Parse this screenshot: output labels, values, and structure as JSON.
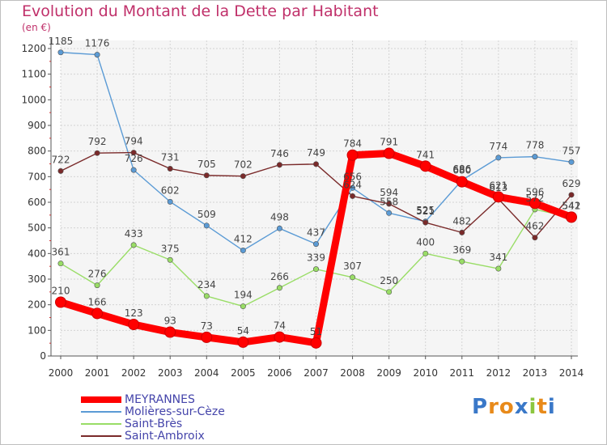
{
  "title": "Evolution du Montant de la Dette par Habitant",
  "unit_label": "(en €)",
  "logo": {
    "text": "Proxiti",
    "letters": [
      "P",
      "r",
      "o",
      "x",
      "i",
      "t",
      "i"
    ],
    "colors": [
      "#3a78c8",
      "#e88a1a",
      "#e88a1a",
      "#3a78c8",
      "#8cc63f",
      "#e88a1a",
      "#3a78c8"
    ]
  },
  "chart_data": {
    "type": "line",
    "title": "Evolution du Montant de la Dette par Habitant",
    "ylabel": "(en €)",
    "xlabel": "",
    "x": [
      "2000",
      "2001",
      "2002",
      "2003",
      "2004",
      "2005",
      "2006",
      "2007",
      "2008",
      "2009",
      "2010",
      "2011",
      "2012",
      "2013",
      "2014"
    ],
    "ylim": [
      0,
      1200
    ],
    "yticks": [
      "0",
      "100",
      "200",
      "300",
      "400",
      "500",
      "600",
      "700",
      "800",
      "900",
      "1000",
      "1100",
      "1200"
    ],
    "grid": true,
    "legend_position": "bottom-left",
    "series": [
      {
        "name": "MEYRANNES",
        "color": "#ff0000",
        "values": [
          210,
          166,
          123,
          93,
          73,
          54,
          74,
          51,
          784,
          791,
          741,
          680,
          621,
          596,
          542
        ]
      },
      {
        "name": "Molières-sur-Cèze",
        "color": "#5b9bd5",
        "values": [
          1185,
          1176,
          726,
          602,
          509,
          412,
          498,
          437,
          656,
          558,
          525,
          686,
          774,
          778,
          757
        ]
      },
      {
        "name": "Saint-Brès",
        "color": "#99dd66",
        "values": [
          361,
          276,
          433,
          375,
          234,
          194,
          266,
          339,
          307,
          250,
          400,
          369,
          341,
          572,
          541
        ]
      },
      {
        "name": "Saint-Ambroix",
        "color": "#7a2a2a",
        "values": [
          722,
          792,
          794,
          731,
          705,
          702,
          746,
          749,
          624,
          594,
          521,
          482,
          613,
          462,
          629
        ]
      }
    ]
  }
}
